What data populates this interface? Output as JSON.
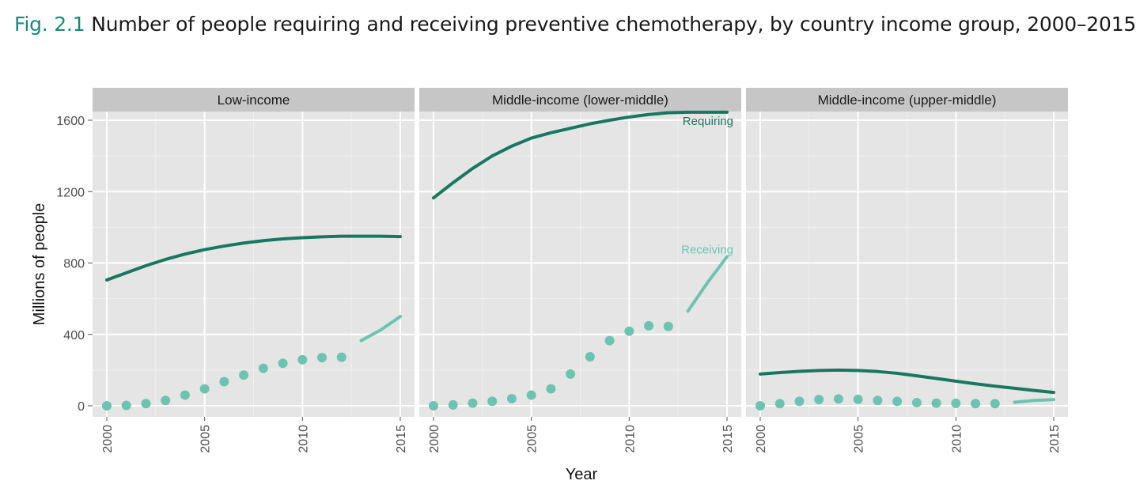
{
  "figure": {
    "number": "Fig. 2.1",
    "title": "Number of people requiring and receiving preventive chemotherapy, by country income group, 2000–2015"
  },
  "colors": {
    "requiring": "#17785f",
    "receiving": "#6cc4b0",
    "panel_bg": "#e5e5e5",
    "strip_bg": "#c6c6c6",
    "grid": "#ffffff"
  },
  "chart_data": {
    "type": "line",
    "xlabel": "Year",
    "ylabel": "Millions of people",
    "xlim": [
      2000,
      2015
    ],
    "ylim": [
      0,
      1600
    ],
    "x_ticks": [
      2000,
      2005,
      2010,
      2015
    ],
    "y_ticks": [
      0,
      400,
      800,
      1200,
      1600
    ],
    "annotations": {
      "requiring": "Requiring",
      "receiving": "Receiving"
    },
    "panels": [
      {
        "name": "Low-income",
        "requiring": {
          "x": [
            2000,
            2001,
            2002,
            2003,
            2004,
            2005,
            2006,
            2007,
            2008,
            2009,
            2010,
            2011,
            2012,
            2013,
            2014,
            2015
          ],
          "y": [
            705,
            745,
            785,
            820,
            850,
            875,
            895,
            912,
            925,
            935,
            942,
            947,
            950,
            950,
            950,
            948
          ]
        },
        "receiving_points": {
          "x": [
            2000,
            2001,
            2002,
            2003,
            2004,
            2005,
            2006,
            2007,
            2008,
            2009,
            2010,
            2011,
            2012
          ],
          "y": [
            0,
            2,
            12,
            30,
            60,
            95,
            135,
            172,
            210,
            238,
            258,
            270,
            272
          ]
        },
        "receiving_line": {
          "x": [
            2013,
            2014,
            2015
          ],
          "y": [
            365,
            425,
            500
          ]
        }
      },
      {
        "name": "Middle-income (lower-middle)",
        "requiring": {
          "x": [
            2000,
            2001,
            2002,
            2003,
            2004,
            2005,
            2006,
            2007,
            2008,
            2009,
            2010,
            2011,
            2012,
            2013,
            2014,
            2015
          ],
          "y": [
            1165,
            1250,
            1330,
            1400,
            1455,
            1500,
            1530,
            1555,
            1580,
            1600,
            1618,
            1632,
            1642,
            1645,
            1645,
            1645
          ]
        },
        "receiving_points": {
          "x": [
            2000,
            2001,
            2002,
            2003,
            2004,
            2005,
            2006,
            2007,
            2008,
            2009,
            2010,
            2011,
            2012
          ],
          "y": [
            0,
            5,
            15,
            25,
            40,
            60,
            95,
            178,
            275,
            365,
            418,
            448,
            445
          ]
        },
        "receiving_line": {
          "x": [
            2013,
            2014,
            2015
          ],
          "y": [
            530,
            690,
            835
          ]
        }
      },
      {
        "name": "Middle-income (upper-middle)",
        "requiring": {
          "x": [
            2000,
            2001,
            2002,
            2003,
            2004,
            2005,
            2006,
            2007,
            2008,
            2009,
            2010,
            2011,
            2012,
            2013,
            2014,
            2015
          ],
          "y": [
            178,
            186,
            193,
            198,
            200,
            198,
            192,
            182,
            168,
            153,
            138,
            123,
            110,
            98,
            86,
            75
          ]
        },
        "receiving_points": {
          "x": [
            2000,
            2001,
            2002,
            2003,
            2004,
            2005,
            2006,
            2007,
            2008,
            2009,
            2010,
            2011,
            2012
          ],
          "y": [
            0,
            12,
            25,
            35,
            38,
            36,
            30,
            25,
            18,
            15,
            14,
            12,
            12
          ]
        },
        "receiving_line": {
          "x": [
            2013,
            2014,
            2015
          ],
          "y": [
            20,
            30,
            35
          ]
        }
      }
    ]
  }
}
